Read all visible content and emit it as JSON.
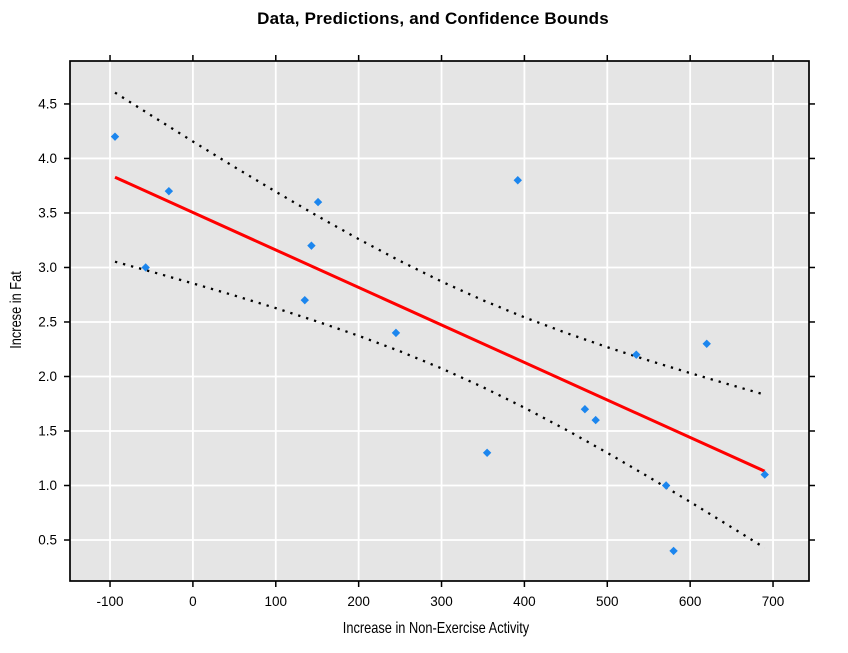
{
  "chart_data": {
    "type": "scatter",
    "title": "Data, Predictions, and Confidence Bounds",
    "xlabel": "Increase in Non-Exercise Activity",
    "ylabel": "Increse in Fat",
    "xlim": [
      -148.3,
      743.4
    ],
    "ylim": [
      0.124,
      4.894
    ],
    "x_ticks": [
      -100,
      0,
      100,
      200,
      300,
      400,
      500,
      600,
      700
    ],
    "y_ticks": [
      0.5,
      1.0,
      1.5,
      2.0,
      2.5,
      3.0,
      3.5,
      4.0,
      4.5
    ],
    "grid": true,
    "legend": "none",
    "colors": {
      "panel_bg": "#E5E5E5",
      "grid": "#FFFFFF",
      "frame": "#000000",
      "points": "#1C86EE",
      "regression": "#FF0000",
      "bounds": "#000000"
    },
    "series": [
      {
        "name": "observed-data",
        "kind": "points",
        "marker": "diamond",
        "color": "#1C86EE",
        "x": [
          -94,
          -57,
          -29,
          135,
          143,
          151,
          245,
          355,
          392,
          473,
          486,
          535,
          571,
          580,
          620,
          690
        ],
        "y": [
          4.2,
          3.0,
          3.7,
          2.7,
          3.2,
          3.6,
          2.4,
          1.3,
          3.8,
          1.7,
          1.6,
          2.2,
          1.0,
          0.4,
          2.3,
          1.1
        ]
      },
      {
        "name": "prediction-line",
        "kind": "line",
        "style": "solid",
        "color": "#FF0000",
        "equation": "yhat = 3.505 - 0.00344x",
        "x": [
          -94,
          690
        ],
        "y": [
          3.828,
          1.131
        ]
      },
      {
        "name": "upper-confidence-bound",
        "kind": "line",
        "style": "dotted",
        "color": "#000000",
        "x": [
          -94,
          -50,
          0,
          50,
          100,
          150,
          200,
          250,
          300,
          350,
          400,
          450,
          500,
          550,
          600,
          650,
          690
        ],
        "y": [
          4.604,
          4.393,
          4.156,
          3.923,
          3.695,
          3.473,
          3.26,
          3.059,
          2.871,
          2.699,
          2.543,
          2.401,
          2.269,
          2.147,
          2.031,
          1.92,
          1.834
        ]
      },
      {
        "name": "lower-confidence-bound",
        "kind": "line",
        "style": "dotted",
        "color": "#000000",
        "x": [
          -94,
          -50,
          0,
          50,
          100,
          150,
          200,
          250,
          300,
          350,
          400,
          450,
          500,
          550,
          600,
          650,
          690
        ],
        "y": [
          3.053,
          2.961,
          2.854,
          2.743,
          2.627,
          2.504,
          2.373,
          2.231,
          2.074,
          1.902,
          1.714,
          1.513,
          1.3,
          1.078,
          0.85,
          0.617,
          0.428
        ]
      }
    ]
  }
}
